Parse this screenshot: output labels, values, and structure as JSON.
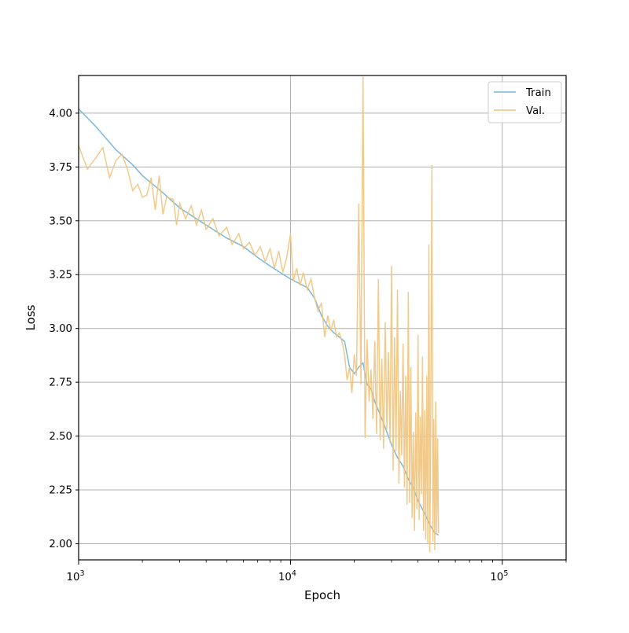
{
  "chart_data": {
    "type": "line",
    "xlabel": "Epoch",
    "ylabel": "Loss",
    "xscale": "log",
    "xlim": [
      1000,
      200000
    ],
    "ylim": [
      1.925,
      4.175
    ],
    "grid": true,
    "legend_position": "top-right",
    "x_ticks": [
      {
        "value": 1000,
        "base": "10",
        "exp": "3"
      },
      {
        "value": 10000,
        "base": "10",
        "exp": "4"
      },
      {
        "value": 100000,
        "base": "10",
        "exp": "5"
      }
    ],
    "y_ticks": [
      "2.00",
      "2.25",
      "2.50",
      "2.75",
      "3.00",
      "3.25",
      "3.50",
      "3.75",
      "4.00"
    ],
    "series": [
      {
        "name": "Train",
        "color": "#7ab8d6",
        "points": [
          [
            1000,
            4.02
          ],
          [
            1200,
            3.94
          ],
          [
            1500,
            3.83
          ],
          [
            1800,
            3.76
          ],
          [
            2000,
            3.71
          ],
          [
            2500,
            3.63
          ],
          [
            3000,
            3.56
          ],
          [
            4000,
            3.48
          ],
          [
            5000,
            3.42
          ],
          [
            6000,
            3.38
          ],
          [
            7000,
            3.33
          ],
          [
            8000,
            3.29
          ],
          [
            10000,
            3.23
          ],
          [
            12000,
            3.19
          ],
          [
            13000,
            3.14
          ],
          [
            14000,
            3.06
          ],
          [
            15000,
            3.01
          ],
          [
            16000,
            2.98
          ],
          [
            17000,
            2.96
          ],
          [
            18000,
            2.94
          ],
          [
            19000,
            2.82
          ],
          [
            20000,
            2.79
          ],
          [
            21000,
            2.82
          ],
          [
            22000,
            2.84
          ],
          [
            23000,
            2.74
          ],
          [
            24000,
            2.72
          ],
          [
            25000,
            2.66
          ],
          [
            26000,
            2.62
          ],
          [
            27000,
            2.58
          ],
          [
            28000,
            2.54
          ],
          [
            30000,
            2.46
          ],
          [
            32000,
            2.4
          ],
          [
            34000,
            2.36
          ],
          [
            36000,
            2.3
          ],
          [
            38000,
            2.26
          ],
          [
            40000,
            2.2
          ],
          [
            43000,
            2.14
          ],
          [
            46000,
            2.08
          ],
          [
            48000,
            2.05
          ],
          [
            50000,
            2.04
          ]
        ]
      },
      {
        "name": "Val.",
        "color": "#f0c47e",
        "points": [
          [
            1000,
            3.85
          ],
          [
            1100,
            3.74
          ],
          [
            1200,
            3.79
          ],
          [
            1300,
            3.84
          ],
          [
            1400,
            3.7
          ],
          [
            1500,
            3.78
          ],
          [
            1600,
            3.81
          ],
          [
            1700,
            3.74
          ],
          [
            1800,
            3.64
          ],
          [
            1900,
            3.67
          ],
          [
            2000,
            3.61
          ],
          [
            2100,
            3.62
          ],
          [
            2200,
            3.7
          ],
          [
            2300,
            3.55
          ],
          [
            2400,
            3.71
          ],
          [
            2500,
            3.53
          ],
          [
            2600,
            3.61
          ],
          [
            2800,
            3.6
          ],
          [
            2900,
            3.48
          ],
          [
            3000,
            3.58
          ],
          [
            3200,
            3.51
          ],
          [
            3400,
            3.57
          ],
          [
            3600,
            3.48
          ],
          [
            3800,
            3.55
          ],
          [
            4000,
            3.46
          ],
          [
            4300,
            3.51
          ],
          [
            4600,
            3.43
          ],
          [
            5000,
            3.47
          ],
          [
            5300,
            3.39
          ],
          [
            5700,
            3.44
          ],
          [
            6000,
            3.37
          ],
          [
            6400,
            3.4
          ],
          [
            6800,
            3.34
          ],
          [
            7200,
            3.38
          ],
          [
            7600,
            3.31
          ],
          [
            8000,
            3.37
          ],
          [
            8400,
            3.28
          ],
          [
            8800,
            3.36
          ],
          [
            9200,
            3.26
          ],
          [
            9600,
            3.33
          ],
          [
            10000,
            3.44
          ],
          [
            10300,
            3.22
          ],
          [
            10700,
            3.28
          ],
          [
            11100,
            3.2
          ],
          [
            11500,
            3.26
          ],
          [
            12000,
            3.18
          ],
          [
            12500,
            3.23
          ],
          [
            13000,
            3.14
          ],
          [
            13500,
            3.08
          ],
          [
            14000,
            3.12
          ],
          [
            14500,
            2.96
          ],
          [
            15000,
            3.06
          ],
          [
            15500,
            2.99
          ],
          [
            16000,
            3.04
          ],
          [
            16500,
            2.96
          ],
          [
            17000,
            2.98
          ],
          [
            17500,
            2.94
          ],
          [
            18000,
            2.88
          ],
          [
            18500,
            2.76
          ],
          [
            19000,
            2.82
          ],
          [
            19500,
            2.7
          ],
          [
            20000,
            2.88
          ],
          [
            20500,
            2.78
          ],
          [
            21000,
            3.58
          ],
          [
            21500,
            2.74
          ],
          [
            22000,
            4.17
          ],
          [
            22500,
            2.49
          ],
          [
            23000,
            2.95
          ],
          [
            23500,
            2.66
          ],
          [
            24000,
            2.81
          ],
          [
            24500,
            2.58
          ],
          [
            25000,
            2.94
          ],
          [
            25500,
            2.51
          ],
          [
            26000,
            3.23
          ],
          [
            26500,
            2.48
          ],
          [
            27000,
            2.86
          ],
          [
            27500,
            2.44
          ],
          [
            28000,
            3.03
          ],
          [
            28500,
            2.53
          ],
          [
            29000,
            2.89
          ],
          [
            29500,
            2.47
          ],
          [
            30000,
            3.29
          ],
          [
            30500,
            2.34
          ],
          [
            31000,
            2.96
          ],
          [
            31500,
            2.43
          ],
          [
            32000,
            3.18
          ],
          [
            32500,
            2.28
          ],
          [
            33000,
            2.71
          ],
          [
            33500,
            2.41
          ],
          [
            34000,
            2.93
          ],
          [
            34500,
            2.26
          ],
          [
            35000,
            2.78
          ],
          [
            35500,
            2.18
          ],
          [
            36000,
            3.17
          ],
          [
            36500,
            2.19
          ],
          [
            37000,
            2.82
          ],
          [
            37500,
            2.12
          ],
          [
            38000,
            2.52
          ],
          [
            38500,
            2.06
          ],
          [
            39000,
            2.61
          ],
          [
            39500,
            2.16
          ],
          [
            40000,
            2.97
          ],
          [
            40500,
            2.11
          ],
          [
            41000,
            2.59
          ],
          [
            41500,
            2.23
          ],
          [
            42000,
            2.87
          ],
          [
            42500,
            2.06
          ],
          [
            43000,
            2.62
          ],
          [
            43500,
            2.02
          ],
          [
            44000,
            2.78
          ],
          [
            44500,
            2.0
          ],
          [
            45000,
            3.39
          ],
          [
            45500,
            1.96
          ],
          [
            46000,
            2.74
          ],
          [
            46500,
            3.76
          ],
          [
            47000,
            2.01
          ],
          [
            47500,
            2.58
          ],
          [
            48000,
            1.97
          ],
          [
            48500,
            2.66
          ],
          [
            49000,
            2.04
          ],
          [
            49500,
            2.49
          ],
          [
            50000,
            2.05
          ]
        ]
      }
    ]
  }
}
